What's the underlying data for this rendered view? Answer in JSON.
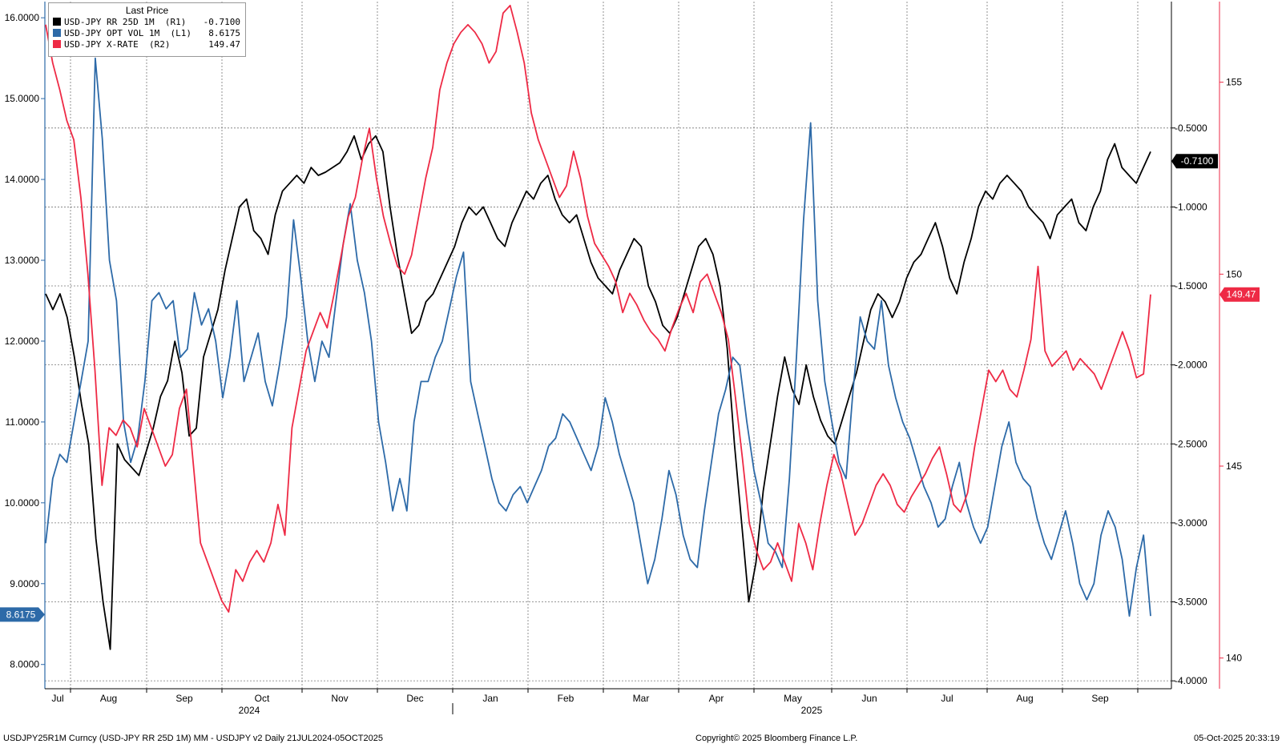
{
  "chart_data": {
    "type": "line",
    "legend": {
      "title": "Last Price",
      "placement": "top-left",
      "entries": [
        {
          "label": "USD-JPY RR 25D 1M  (R1)",
          "value": "-0.7100",
          "color": "#000000"
        },
        {
          "label": "USD-JPY OPT VOL 1M  (L1)",
          "value": "8.6175",
          "color": "#2d6aa8"
        },
        {
          "label": "USD-JPY X-RATE  (R2)",
          "value": "149.47",
          "color": "#ee2a45"
        }
      ]
    },
    "x_axis": {
      "months": [
        "Jul",
        "Aug",
        "Sep",
        "Oct",
        "Nov",
        "Dec",
        "Jan",
        "Feb",
        "Mar",
        "Apr",
        "May",
        "Jun",
        "Jul",
        "Aug",
        "Sep"
      ],
      "years": [
        "2024",
        "2025"
      ]
    },
    "y_left": {
      "range": [
        7.7,
        16.2
      ],
      "ticks": [
        "16.0000",
        "15.0000",
        "14.0000",
        "13.0000",
        "12.0000",
        "11.0000",
        "10.0000",
        "9.0000",
        "8.0000"
      ],
      "last_label": "8.6175"
    },
    "y_right1": {
      "range": [
        -4.05,
        0.3
      ],
      "ticks": [
        "-0.5000",
        "-1.0000",
        "-1.5000",
        "-2.0000",
        "-2.5000",
        "-3.0000",
        "-3.5000",
        "-4.0000"
      ],
      "last_label": "-0.7100"
    },
    "y_right2": {
      "range": [
        139.2,
        157.1
      ],
      "ticks": [
        "155",
        "150",
        "145",
        "140"
      ],
      "last_label": "149.47"
    },
    "series": [
      {
        "name": "USD-JPY RR 25D 1M",
        "axis": "right1",
        "color": "#000000",
        "values": [
          -1.55,
          -1.65,
          -1.55,
          -1.7,
          -1.95,
          -2.25,
          -2.5,
          -3.1,
          -3.5,
          -3.8,
          -2.5,
          -2.6,
          -2.65,
          -2.7,
          -2.55,
          -2.4,
          -2.2,
          -2.1,
          -1.85,
          -2.05,
          -2.45,
          -2.4,
          -1.95,
          -1.8,
          -1.65,
          -1.4,
          -1.2,
          -1.0,
          -0.95,
          -1.15,
          -1.2,
          -1.3,
          -1.05,
          -0.9,
          -0.85,
          -0.8,
          -0.85,
          -0.75,
          -0.8,
          -0.78,
          -0.75,
          -0.72,
          -0.65,
          -0.55,
          -0.7,
          -0.6,
          -0.55,
          -0.65,
          -1.0,
          -1.3,
          -1.55,
          -1.8,
          -1.75,
          -1.6,
          -1.55,
          -1.45,
          -1.35,
          -1.25,
          -1.1,
          -1.0,
          -1.05,
          -1.0,
          -1.1,
          -1.2,
          -1.25,
          -1.1,
          -1.0,
          -0.9,
          -0.95,
          -0.85,
          -0.8,
          -0.95,
          -1.05,
          -1.1,
          -1.05,
          -1.2,
          -1.35,
          -1.45,
          -1.5,
          -1.55,
          -1.4,
          -1.3,
          -1.2,
          -1.25,
          -1.5,
          -1.6,
          -1.75,
          -1.8,
          -1.7,
          -1.55,
          -1.4,
          -1.25,
          -1.2,
          -1.3,
          -1.5,
          -1.9,
          -2.5,
          -3.0,
          -3.5,
          -3.25,
          -2.8,
          -2.5,
          -2.2,
          -1.95,
          -2.15,
          -2.25,
          -2.0,
          -2.2,
          -2.35,
          -2.45,
          -2.5,
          -2.35,
          -2.2,
          -2.05,
          -1.85,
          -1.65,
          -1.55,
          -1.6,
          -1.7,
          -1.6,
          -1.45,
          -1.35,
          -1.3,
          -1.2,
          -1.1,
          -1.25,
          -1.45,
          -1.55,
          -1.35,
          -1.2,
          -1.0,
          -0.9,
          -0.95,
          -0.85,
          -0.8,
          -0.85,
          -0.9,
          -1.0,
          -1.05,
          -1.1,
          -1.2,
          -1.05,
          -1.0,
          -0.95,
          -1.1,
          -1.15,
          -1.0,
          -0.9,
          -0.7,
          -0.6,
          -0.75,
          -0.8,
          -0.85,
          -0.75,
          -0.65
        ],
        "last": -0.71
      },
      {
        "name": "USD-JPY OPT VOL 1M",
        "axis": "left",
        "color": "#2d6aa8",
        "values": [
          9.5,
          10.3,
          10.6,
          10.5,
          11.0,
          11.5,
          12.0,
          15.5,
          14.5,
          13.0,
          12.5,
          11.0,
          10.5,
          10.8,
          11.5,
          12.5,
          12.6,
          12.4,
          12.5,
          11.8,
          11.9,
          12.6,
          12.2,
          12.4,
          12.0,
          11.3,
          11.8,
          12.5,
          11.5,
          11.8,
          12.1,
          11.5,
          11.2,
          11.7,
          12.3,
          13.5,
          12.8,
          12.0,
          11.5,
          12.0,
          11.8,
          12.5,
          13.2,
          13.7,
          13.0,
          12.6,
          12.0,
          11.0,
          10.5,
          9.9,
          10.3,
          9.9,
          11.0,
          11.5,
          11.5,
          11.8,
          12.0,
          12.4,
          12.8,
          13.1,
          11.5,
          11.1,
          10.7,
          10.3,
          10.0,
          9.9,
          10.1,
          10.2,
          10.0,
          10.2,
          10.4,
          10.7,
          10.8,
          11.1,
          11.0,
          10.8,
          10.6,
          10.4,
          10.7,
          11.3,
          11.0,
          10.6,
          10.3,
          10.0,
          9.5,
          9.0,
          9.3,
          9.8,
          10.4,
          10.1,
          9.6,
          9.3,
          9.2,
          9.9,
          10.5,
          11.1,
          11.4,
          11.8,
          11.7,
          11.0,
          10.4,
          10.0,
          9.5,
          9.4,
          9.2,
          10.3,
          11.8,
          13.5,
          14.7,
          12.5,
          11.5,
          11.0,
          10.5,
          10.3,
          11.4,
          12.3,
          12.0,
          11.9,
          12.5,
          11.7,
          11.3,
          11.0,
          10.8,
          10.5,
          10.2,
          10.0,
          9.7,
          9.8,
          10.2,
          10.5,
          10.0,
          9.7,
          9.5,
          9.7,
          10.2,
          10.7,
          11.0,
          10.5,
          10.3,
          10.2,
          9.8,
          9.5,
          9.3,
          9.6,
          9.9,
          9.5,
          9.0,
          8.8,
          9.0,
          9.6,
          9.9,
          9.7,
          9.3,
          8.6,
          9.2,
          9.6,
          8.6
        ],
        "last": 8.6175
      },
      {
        "name": "USD-JPY X-RATE",
        "axis": "right2",
        "color": "#ee2a45",
        "values": [
          156.5,
          155.5,
          154.8,
          154.0,
          153.5,
          152.0,
          150.0,
          147.5,
          144.5,
          146.0,
          145.8,
          146.2,
          146.0,
          145.5,
          146.5,
          146.0,
          145.5,
          145.0,
          145.3,
          146.5,
          147.0,
          145.0,
          143.0,
          142.5,
          142.0,
          141.5,
          141.2,
          142.3,
          142.0,
          142.5,
          142.8,
          142.5,
          143.0,
          144.0,
          143.2,
          146.0,
          147.0,
          148.0,
          148.5,
          149.0,
          148.6,
          149.5,
          150.5,
          151.5,
          152.0,
          153.0,
          153.8,
          152.5,
          151.5,
          150.8,
          150.2,
          150.0,
          150.5,
          151.5,
          152.5,
          153.3,
          154.8,
          155.5,
          156.0,
          156.3,
          156.5,
          156.3,
          156.0,
          155.5,
          155.8,
          156.8,
          157.0,
          156.3,
          155.5,
          154.2,
          153.5,
          153.0,
          152.5,
          152.0,
          152.3,
          153.2,
          152.5,
          151.5,
          150.8,
          150.5,
          150.2,
          149.8,
          149.0,
          149.5,
          149.2,
          148.8,
          148.5,
          148.3,
          148.0,
          148.6,
          149.1,
          149.5,
          149.0,
          149.8,
          150.0,
          149.5,
          149.0,
          148.3,
          146.8,
          145.2,
          143.5,
          142.8,
          142.3,
          142.5,
          143.0,
          142.5,
          142.0,
          143.5,
          143.0,
          142.3,
          143.5,
          144.5,
          145.3,
          144.8,
          144.0,
          143.2,
          143.5,
          144.0,
          144.5,
          144.8,
          144.5,
          144.0,
          143.8,
          144.2,
          144.5,
          144.8,
          145.2,
          145.5,
          144.8,
          144.0,
          143.8,
          144.3,
          145.5,
          146.5,
          147.5,
          147.2,
          147.5,
          147.0,
          146.8,
          147.5,
          148.3,
          150.2,
          148.0,
          147.6,
          147.8,
          148.0,
          147.5,
          147.8,
          147.6,
          147.4,
          147.0,
          147.5,
          148.0,
          148.5,
          148.0,
          147.3,
          147.4,
          149.47
        ],
        "last": 149.47
      }
    ]
  },
  "footer": {
    "left": "USDJPY25R1M Curncy (USD-JPY RR 25D 1M) MM - USDJPY v2 Daily 21JUL2024-05OCT2025",
    "center": "Copyright© 2025 Bloomberg Finance L.P.",
    "right": "05-Oct-2025 20:33:19"
  }
}
